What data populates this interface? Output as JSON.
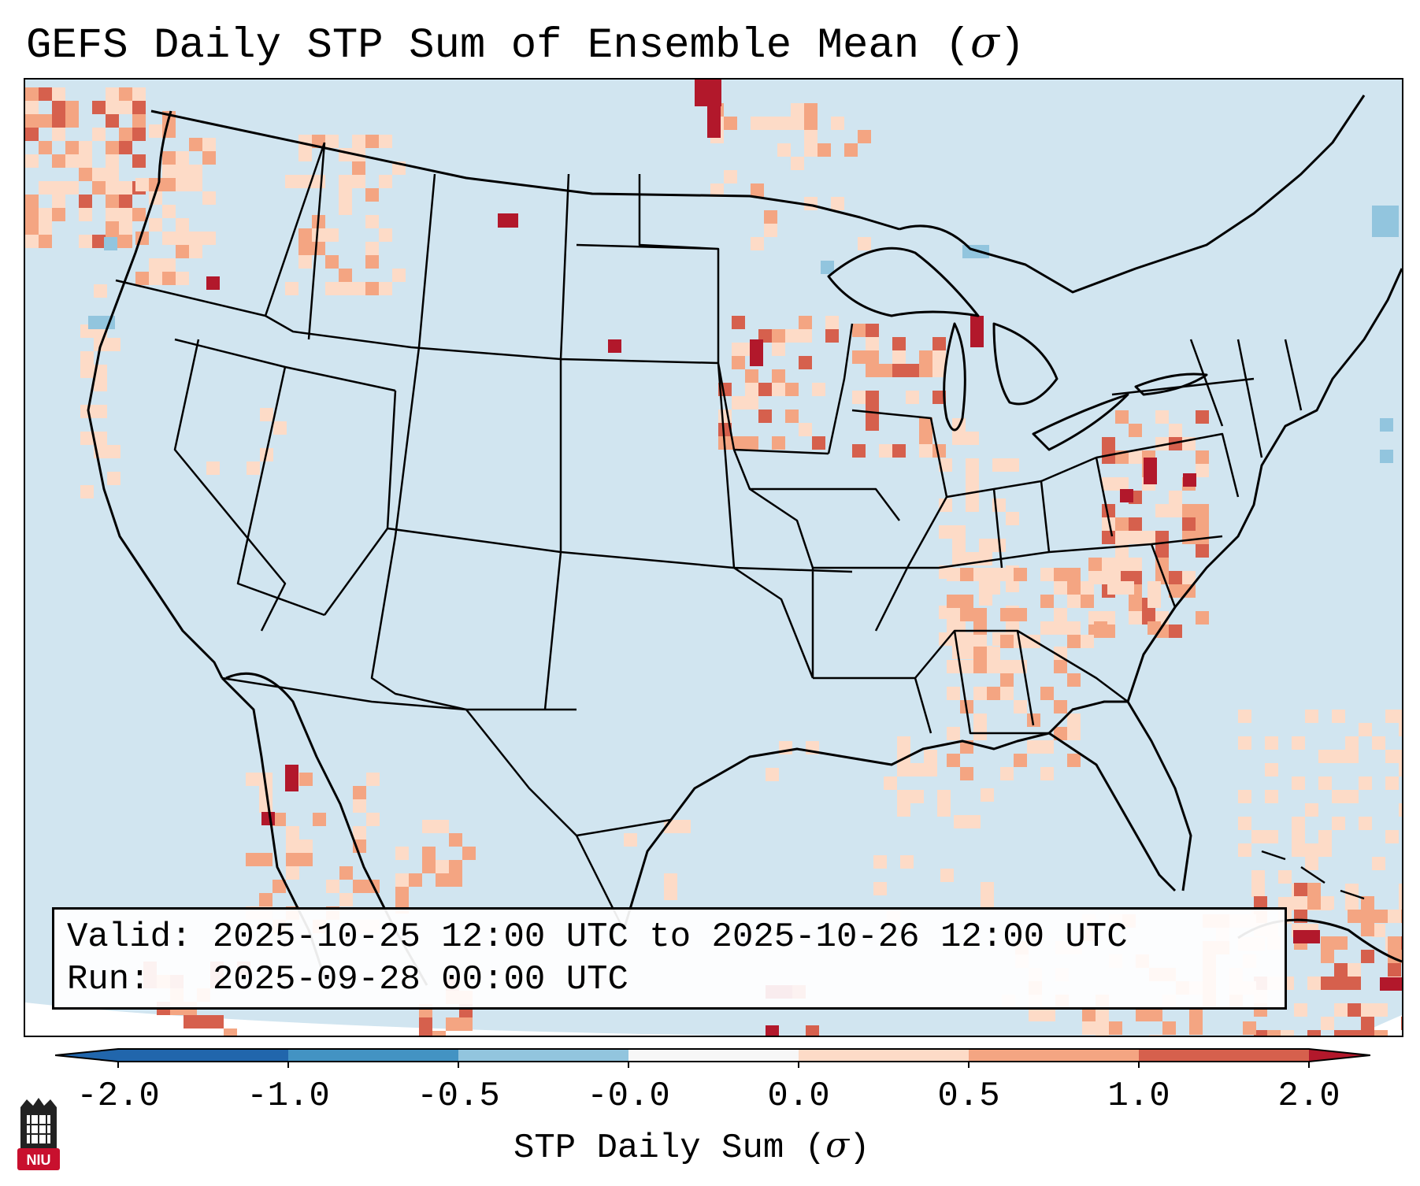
{
  "title": {
    "text": "GEFS Daily STP Sum of Ensemble Mean (",
    "symbol": "σ",
    "close": ")"
  },
  "info": {
    "valid_line": "Valid: 2025-10-25 12:00 UTC to 2025-10-26 12:00 UTC",
    "run_line": "Run:   2025-09-28 00:00 UTC"
  },
  "colorbar": {
    "ticks": [
      "-2.0",
      "-1.0",
      "-0.5",
      "-0.0",
      "0.0",
      "0.5",
      "1.0",
      "2.0"
    ],
    "colors": [
      "#2166ac",
      "#4393c3",
      "#92c5de",
      "#d1e5f0",
      "#f7f7f7",
      "#fddbc7",
      "#f4a582",
      "#d6604d",
      "#b2182b"
    ],
    "label_text": "STP Daily Sum (",
    "label_symbol": "σ",
    "label_close": ")"
  },
  "map": {
    "background_color": "#d1e5f0",
    "ocean_color": "#d1e5f0",
    "border_color": "#000000"
  },
  "logo": {
    "text": "NIU"
  }
}
